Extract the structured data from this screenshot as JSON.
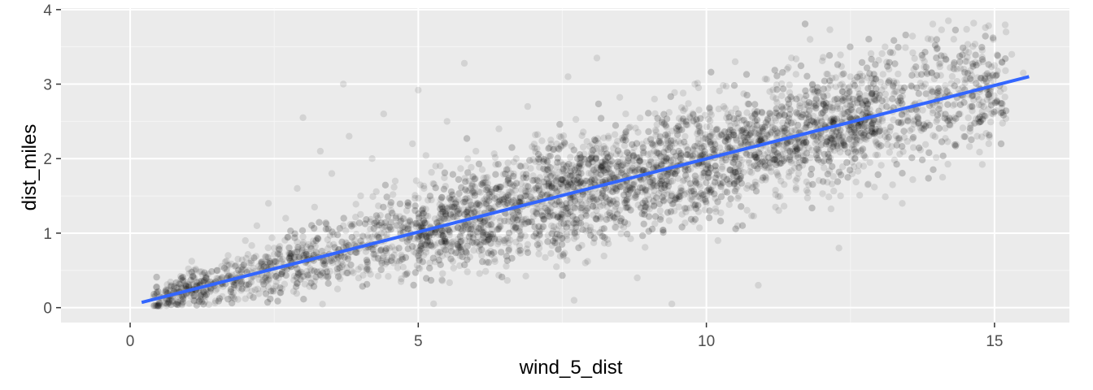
{
  "chart_data": {
    "type": "scatter",
    "title": "",
    "xlabel": "wind_5_dist",
    "ylabel": "dist_miles",
    "xlim": [
      -1.2,
      16.3
    ],
    "ylim": [
      -0.2,
      4.02
    ],
    "x_ticks": [
      0,
      5,
      10,
      15
    ],
    "y_ticks": [
      0,
      1,
      2,
      3,
      4
    ],
    "x_tick_labels": [
      "0",
      "5",
      "10",
      "15"
    ],
    "y_tick_labels": [
      "0",
      "1",
      "2",
      "3",
      "4"
    ],
    "grid": true,
    "background_color": "#ebebeb",
    "point_color": "#000000",
    "point_alpha": 0.1,
    "trend_line": {
      "method": "linear",
      "color": "#3366ff",
      "x": [
        0.2,
        15.6
      ],
      "y": [
        0.07,
        3.1
      ]
    },
    "points": [
      [
        0.5,
        0.06
      ],
      [
        0.7,
        0.12
      ],
      [
        0.9,
        0.05
      ],
      [
        1.0,
        0.2
      ],
      [
        1.1,
        0.1
      ],
      [
        1.2,
        0.35
      ],
      [
        1.3,
        0.08
      ],
      [
        1.4,
        0.25
      ],
      [
        1.5,
        0.5
      ],
      [
        1.6,
        0.15
      ],
      [
        1.7,
        0.7
      ],
      [
        1.8,
        0.3
      ],
      [
        1.9,
        0.45
      ],
      [
        2.0,
        0.9
      ],
      [
        2.0,
        0.12
      ],
      [
        2.1,
        0.6
      ],
      [
        2.2,
        1.1
      ],
      [
        2.3,
        0.35
      ],
      [
        2.4,
        1.4
      ],
      [
        2.5,
        0.8
      ],
      [
        2.6,
        0.2
      ],
      [
        2.7,
        1.2
      ],
      [
        2.8,
        0.55
      ],
      [
        2.9,
        1.6
      ],
      [
        3.0,
        0.95
      ],
      [
        3.0,
        2.55
      ],
      [
        3.1,
        0.4
      ],
      [
        3.2,
        1.35
      ],
      [
        3.3,
        2.1
      ],
      [
        3.4,
        0.7
      ],
      [
        3.5,
        1.8
      ],
      [
        3.6,
        0.25
      ],
      [
        3.7,
        1.1
      ],
      [
        3.7,
        3.0
      ],
      [
        3.8,
        2.3
      ],
      [
        3.9,
        0.9
      ],
      [
        4.0,
        1.5
      ],
      [
        4.1,
        0.5
      ],
      [
        4.2,
        2.0
      ],
      [
        4.3,
        1.2
      ],
      [
        4.4,
        2.6
      ],
      [
        4.5,
        0.8
      ],
      [
        4.6,
        1.7
      ],
      [
        4.7,
        0.35
      ],
      [
        4.8,
        1.3
      ],
      [
        4.9,
        2.2
      ],
      [
        5.0,
        0.95
      ],
      [
        5.0,
        2.92
      ],
      [
        5.1,
        1.6
      ],
      [
        5.2,
        0.6
      ],
      [
        5.3,
        1.9
      ],
      [
        5.4,
        1.2
      ],
      [
        5.5,
        2.5
      ],
      [
        5.6,
        0.85
      ],
      [
        5.7,
        1.45
      ],
      [
        5.8,
        3.28
      ],
      [
        5.9,
        1.05
      ],
      [
        6.0,
        2.1
      ],
      [
        6.1,
        0.7
      ],
      [
        6.2,
        1.75
      ],
      [
        6.3,
        1.3
      ],
      [
        6.4,
        2.4
      ],
      [
        6.5,
        0.9
      ],
      [
        6.6,
        1.55
      ],
      [
        6.7,
        2.0
      ],
      [
        6.8,
        1.15
      ],
      [
        6.9,
        2.7
      ],
      [
        7.0,
        1.4
      ],
      [
        7.1,
        0.8
      ],
      [
        7.2,
        1.85
      ],
      [
        7.3,
        2.25
      ],
      [
        7.4,
        1.05
      ],
      [
        7.5,
        1.65
      ],
      [
        7.6,
        3.1
      ],
      [
        7.7,
        1.35
      ],
      [
        7.8,
        2.0
      ],
      [
        7.9,
        0.6
      ],
      [
        8.0,
        1.8
      ],
      [
        8.1,
        3.35
      ],
      [
        8.2,
        1.5
      ],
      [
        8.3,
        2.3
      ],
      [
        8.4,
        1.2
      ],
      [
        8.5,
        1.95
      ],
      [
        8.6,
        2.6
      ],
      [
        8.7,
        1.6
      ],
      [
        8.8,
        0.4
      ],
      [
        8.9,
        2.1
      ],
      [
        9.0,
        1.75
      ],
      [
        9.1,
        2.8
      ],
      [
        9.2,
        1.3
      ],
      [
        9.3,
        2.2
      ],
      [
        9.4,
        0.05
      ],
      [
        9.5,
        1.9
      ],
      [
        9.6,
        2.5
      ],
      [
        9.7,
        1.55
      ],
      [
        9.8,
        3.0
      ],
      [
        9.9,
        2.05
      ],
      [
        10.0,
        1.4
      ],
      [
        10.1,
        2.35
      ],
      [
        10.2,
        0.9
      ],
      [
        10.3,
        2.7
      ],
      [
        10.4,
        1.85
      ],
      [
        10.5,
        3.3
      ],
      [
        10.6,
        2.2
      ],
      [
        10.7,
        1.6
      ],
      [
        10.8,
        2.55
      ],
      [
        10.9,
        0.3
      ],
      [
        11.0,
        2.0
      ],
      [
        11.1,
        2.9
      ],
      [
        11.2,
        1.35
      ],
      [
        11.3,
        2.4
      ],
      [
        11.4,
        3.2
      ],
      [
        11.5,
        2.1
      ],
      [
        11.6,
        1.8
      ],
      [
        11.7,
        2.65
      ],
      [
        11.8,
        3.6
      ],
      [
        11.9,
        2.3
      ],
      [
        12.0,
        1.95
      ],
      [
        12.1,
        2.85
      ],
      [
        12.2,
        2.45
      ],
      [
        12.3,
        0.8
      ],
      [
        12.4,
        2.6
      ],
      [
        12.5,
        3.1
      ],
      [
        12.6,
        2.2
      ],
      [
        12.7,
        2.75
      ],
      [
        12.8,
        1.65
      ],
      [
        12.9,
        3.0
      ],
      [
        13.0,
        2.4
      ],
      [
        13.1,
        3.5
      ],
      [
        13.2,
        2.65
      ],
      [
        13.3,
        2.9
      ],
      [
        13.4,
        1.4
      ],
      [
        13.5,
        2.5
      ],
      [
        13.6,
        3.2
      ],
      [
        13.7,
        2.75
      ],
      [
        13.8,
        3.0
      ],
      [
        13.9,
        3.6
      ],
      [
        14.0,
        2.85
      ],
      [
        14.1,
        1.75
      ],
      [
        14.2,
        3.85
      ],
      [
        14.3,
        3.2
      ],
      [
        14.4,
        2.6
      ],
      [
        14.5,
        3.45
      ],
      [
        14.6,
        3.05
      ],
      [
        14.7,
        2.3
      ],
      [
        14.8,
        3.3
      ],
      [
        14.9,
        2.2
      ],
      [
        15.0,
        3.25
      ],
      [
        15.1,
        2.9
      ],
      [
        15.2,
        3.7
      ],
      [
        15.3,
        3.4
      ],
      [
        15.5,
        3.15
      ]
    ]
  }
}
